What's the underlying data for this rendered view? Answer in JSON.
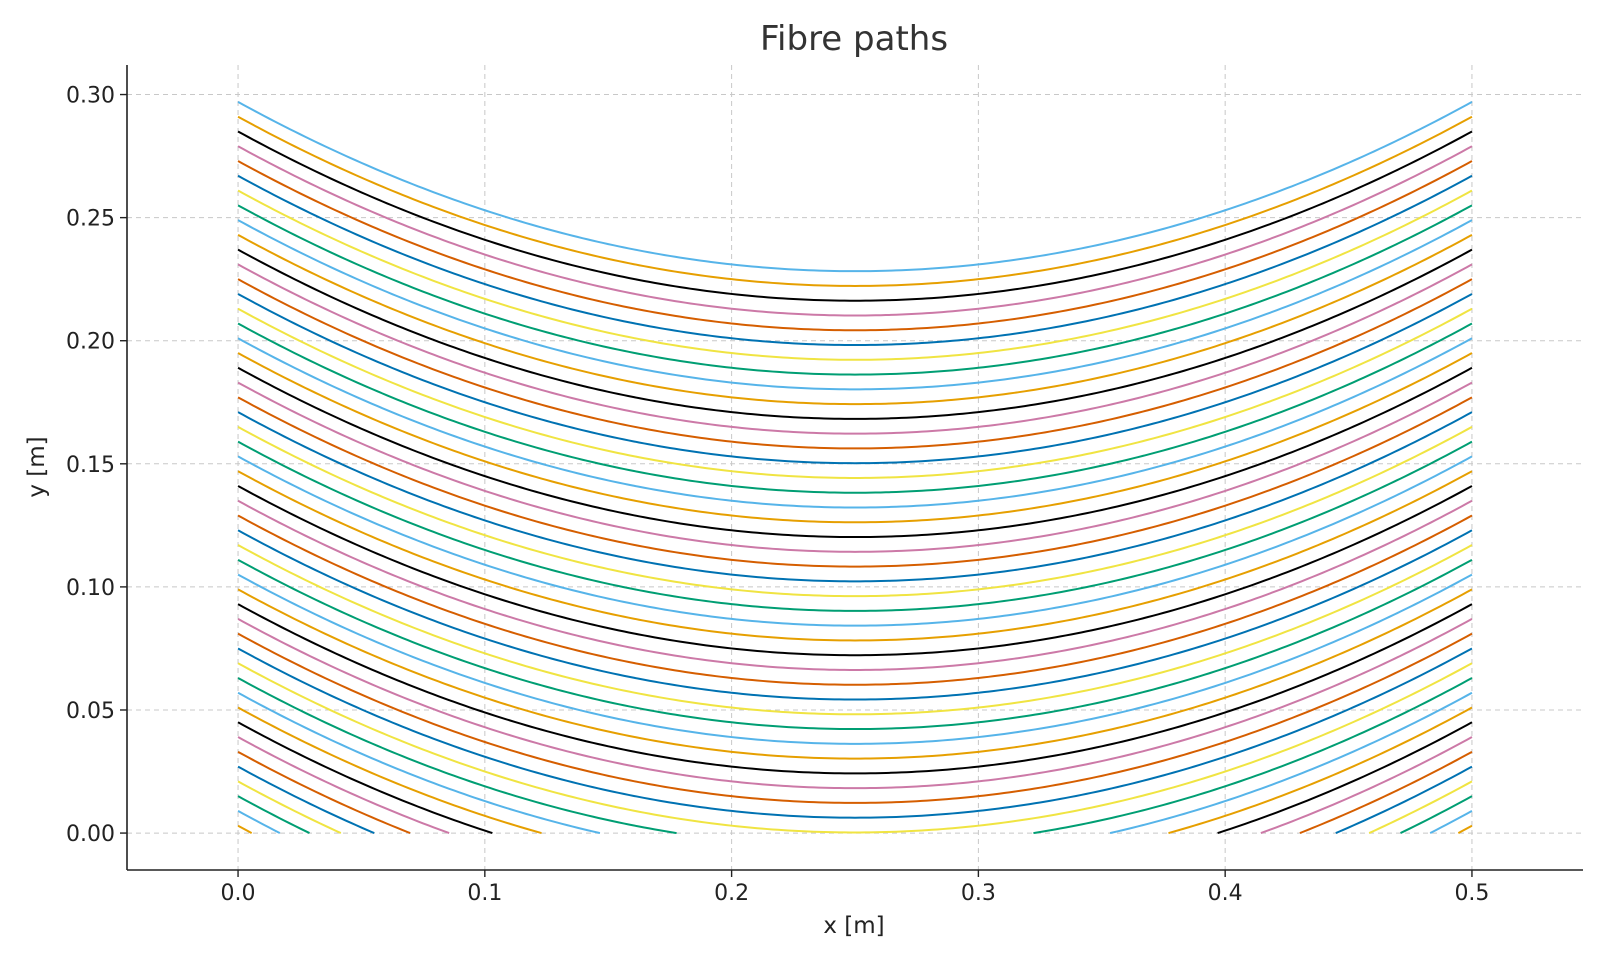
{
  "chart_data": {
    "type": "line",
    "title": "Fibre paths",
    "xlabel": "x [m]",
    "ylabel": "y [m]",
    "xlim": [
      -0.045,
      0.545
    ],
    "ylim": [
      -0.015,
      0.312
    ],
    "xticks": [
      0.0,
      0.1,
      0.2,
      0.3,
      0.4,
      0.5
    ],
    "xtick_labels": [
      "0.0",
      "0.1",
      "0.2",
      "0.3",
      "0.4",
      "0.5"
    ],
    "yticks": [
      0.0,
      0.05,
      0.1,
      0.15,
      0.2,
      0.25,
      0.3
    ],
    "ytick_labels": [
      "0.00",
      "0.05",
      "0.10",
      "0.15",
      "0.20",
      "0.25",
      "0.30"
    ],
    "grid": true,
    "legend": "none",
    "curve_model": "y = c + 1.1*(x - 0.25)^2, clipped to y >= 0 and 0 <= x <= 0.5",
    "series": [
      {
        "c": -0.06575,
        "color": "#e69f00"
      },
      {
        "c": -0.05975,
        "color": "#56b4e9"
      },
      {
        "c": -0.05375,
        "color": "#009e73"
      },
      {
        "c": -0.04775,
        "color": "#f0e442"
      },
      {
        "c": -0.04175,
        "color": "#0072b2"
      },
      {
        "c": -0.03575,
        "color": "#d55e00"
      },
      {
        "c": -0.02975,
        "color": "#cc79a7"
      },
      {
        "c": -0.02375,
        "color": "#000000"
      },
      {
        "c": -0.01775,
        "color": "#e69f00"
      },
      {
        "c": -0.01175,
        "color": "#56b4e9"
      },
      {
        "c": -0.00575,
        "color": "#009e73"
      },
      {
        "c": 0.00025,
        "color": "#f0e442"
      },
      {
        "c": 0.00625,
        "color": "#0072b2"
      },
      {
        "c": 0.01225,
        "color": "#d55e00"
      },
      {
        "c": 0.01825,
        "color": "#cc79a7"
      },
      {
        "c": 0.02425,
        "color": "#000000"
      },
      {
        "c": 0.03025,
        "color": "#e69f00"
      },
      {
        "c": 0.03625,
        "color": "#56b4e9"
      },
      {
        "c": 0.04225,
        "color": "#009e73"
      },
      {
        "c": 0.04825,
        "color": "#f0e442"
      },
      {
        "c": 0.05425,
        "color": "#0072b2"
      },
      {
        "c": 0.06025,
        "color": "#d55e00"
      },
      {
        "c": 0.06625,
        "color": "#cc79a7"
      },
      {
        "c": 0.07225,
        "color": "#000000"
      },
      {
        "c": 0.07825,
        "color": "#e69f00"
      },
      {
        "c": 0.08425,
        "color": "#56b4e9"
      },
      {
        "c": 0.09025,
        "color": "#009e73"
      },
      {
        "c": 0.09625,
        "color": "#f0e442"
      },
      {
        "c": 0.10225,
        "color": "#0072b2"
      },
      {
        "c": 0.10825,
        "color": "#d55e00"
      },
      {
        "c": 0.11425,
        "color": "#cc79a7"
      },
      {
        "c": 0.12025,
        "color": "#000000"
      },
      {
        "c": 0.12625,
        "color": "#e69f00"
      },
      {
        "c": 0.13225,
        "color": "#56b4e9"
      },
      {
        "c": 0.13825,
        "color": "#009e73"
      },
      {
        "c": 0.14425,
        "color": "#f0e442"
      },
      {
        "c": 0.15025,
        "color": "#0072b2"
      },
      {
        "c": 0.15625,
        "color": "#d55e00"
      },
      {
        "c": 0.16225,
        "color": "#cc79a7"
      },
      {
        "c": 0.16825,
        "color": "#000000"
      },
      {
        "c": 0.17425,
        "color": "#e69f00"
      },
      {
        "c": 0.18025,
        "color": "#56b4e9"
      },
      {
        "c": 0.18625,
        "color": "#009e73"
      },
      {
        "c": 0.19225,
        "color": "#f0e442"
      },
      {
        "c": 0.19825,
        "color": "#0072b2"
      },
      {
        "c": 0.20425,
        "color": "#d55e00"
      },
      {
        "c": 0.21025,
        "color": "#cc79a7"
      },
      {
        "c": 0.21625,
        "color": "#000000"
      },
      {
        "c": 0.22225,
        "color": "#e69f00"
      },
      {
        "c": 0.22825,
        "color": "#56b4e9"
      }
    ]
  }
}
